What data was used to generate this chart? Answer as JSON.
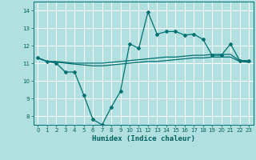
{
  "title": "",
  "xlabel": "Humidex (Indice chaleur)",
  "ylabel": "",
  "background_color": "#b2e0e0",
  "grid_color": "#ffffff",
  "line_color": "#007070",
  "x": [
    0,
    1,
    2,
    3,
    4,
    5,
    6,
    7,
    8,
    9,
    10,
    11,
    12,
    13,
    14,
    15,
    16,
    17,
    18,
    19,
    20,
    21,
    22,
    23
  ],
  "y_main": [
    11.3,
    11.1,
    11.0,
    10.5,
    10.5,
    9.2,
    7.8,
    7.5,
    8.5,
    9.4,
    12.1,
    11.85,
    13.9,
    12.65,
    12.8,
    12.8,
    12.6,
    12.65,
    12.35,
    11.45,
    11.45,
    12.1,
    11.15,
    11.15
  ],
  "y_upper": [
    11.3,
    11.1,
    11.1,
    11.05,
    11.0,
    11.0,
    11.0,
    11.0,
    11.05,
    11.1,
    11.15,
    11.2,
    11.25,
    11.3,
    11.35,
    11.35,
    11.4,
    11.45,
    11.45,
    11.5,
    11.5,
    11.5,
    11.15,
    11.1
  ],
  "y_lower": [
    11.3,
    11.1,
    11.05,
    11.0,
    10.95,
    10.9,
    10.85,
    10.85,
    10.9,
    10.95,
    11.0,
    11.05,
    11.1,
    11.1,
    11.15,
    11.2,
    11.25,
    11.3,
    11.3,
    11.35,
    11.35,
    11.35,
    11.1,
    11.05
  ],
  "ylim": [
    7.5,
    14.5
  ],
  "xlim": [
    -0.5,
    23.5
  ],
  "yticks": [
    8,
    9,
    10,
    11,
    12,
    13,
    14
  ],
  "xticks": [
    0,
    1,
    2,
    3,
    4,
    5,
    6,
    7,
    8,
    9,
    10,
    11,
    12,
    13,
    14,
    15,
    16,
    17,
    18,
    19,
    20,
    21,
    22,
    23
  ],
  "tick_color": "#006060",
  "xlabel_fontsize": 6.5,
  "tick_fontsize": 5.0
}
